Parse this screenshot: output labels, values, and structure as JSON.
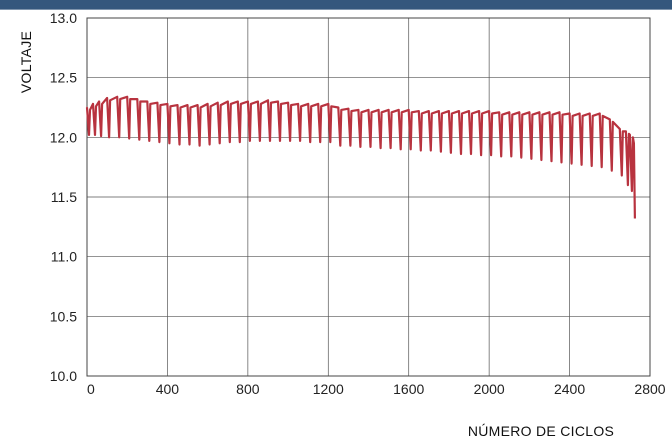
{
  "header": {
    "band_color": "#34577d"
  },
  "chart_data": {
    "type": "line",
    "xlabel": "NÚMERO DE CICLOS",
    "ylabel": "VOLTAJE",
    "xlim": [
      0,
      2800
    ],
    "ylim": [
      10.0,
      13.0
    ],
    "x_ticks": [
      0,
      400,
      800,
      1200,
      1600,
      2000,
      2400,
      2800
    ],
    "x_tick_labels": [
      "0",
      "400",
      "800",
      "1200",
      "1600",
      "2000",
      "2400",
      "2800"
    ],
    "y_ticks": [
      10.0,
      10.5,
      11.0,
      11.5,
      12.0,
      12.5,
      13.0
    ],
    "y_tick_labels": [
      "10.0",
      "10.5",
      "11.0",
      "11.5",
      "12.0",
      "12.5",
      "13.0"
    ],
    "grid": true,
    "legend": "none",
    "series": [
      {
        "color": "#b8333f",
        "x": [
          0,
          30,
          60,
          100,
          150,
          200,
          250,
          300,
          350,
          400,
          450,
          500,
          550,
          600,
          650,
          700,
          750,
          800,
          850,
          900,
          950,
          1000,
          1050,
          1100,
          1150,
          1200,
          1250,
          1300,
          1350,
          1400,
          1450,
          1500,
          1550,
          1600,
          1650,
          1700,
          1750,
          1800,
          1850,
          1900,
          1950,
          2000,
          2050,
          2100,
          2150,
          2200,
          2250,
          2300,
          2350,
          2400,
          2450,
          2500,
          2550,
          2600,
          2650,
          2680,
          2700,
          2720
        ],
        "high": [
          12.25,
          12.28,
          12.3,
          12.33,
          12.34,
          12.34,
          12.32,
          12.3,
          12.29,
          12.28,
          12.27,
          12.27,
          12.27,
          12.28,
          12.29,
          12.3,
          12.3,
          12.3,
          12.3,
          12.31,
          12.3,
          12.29,
          12.28,
          12.28,
          12.28,
          12.28,
          12.25,
          12.24,
          12.23,
          12.23,
          12.23,
          12.23,
          12.23,
          12.23,
          12.22,
          12.22,
          12.22,
          12.22,
          12.22,
          12.22,
          12.22,
          12.22,
          12.21,
          12.21,
          12.21,
          12.21,
          12.21,
          12.21,
          12.21,
          12.2,
          12.2,
          12.2,
          12.2,
          12.15,
          12.07,
          12.05,
          12.02,
          11.95
        ],
        "low": [
          12.02,
          12.02,
          12.01,
          12.0,
          12.0,
          11.99,
          11.98,
          11.97,
          11.96,
          11.95,
          11.94,
          11.94,
          11.93,
          11.94,
          11.95,
          11.96,
          11.96,
          11.97,
          11.97,
          11.97,
          11.97,
          11.97,
          11.97,
          11.96,
          11.96,
          11.96,
          11.93,
          11.93,
          11.92,
          11.92,
          11.91,
          11.91,
          11.9,
          11.9,
          11.89,
          11.89,
          11.88,
          11.87,
          11.86,
          11.86,
          11.85,
          11.85,
          11.84,
          11.84,
          11.83,
          11.82,
          11.81,
          11.8,
          11.79,
          11.78,
          11.77,
          11.76,
          11.75,
          11.72,
          11.68,
          11.6,
          11.55,
          11.32
        ]
      }
    ]
  }
}
